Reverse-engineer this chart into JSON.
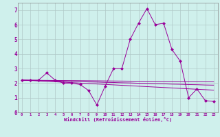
{
  "xlabel": "Windchill (Refroidissement éolien,°C)",
  "background_color": "#cff0ec",
  "grid_color": "#b0c8c8",
  "line_color": "#990099",
  "xlim": [
    -0.5,
    23.5
  ],
  "ylim": [
    0,
    7.5
  ],
  "xticks": [
    0,
    1,
    2,
    3,
    4,
    5,
    6,
    7,
    8,
    9,
    10,
    11,
    12,
    13,
    14,
    15,
    16,
    17,
    18,
    19,
    20,
    21,
    22,
    23
  ],
  "yticks": [
    0,
    1,
    2,
    3,
    4,
    5,
    6,
    7
  ],
  "series": {
    "main": [
      2.2,
      2.2,
      2.2,
      2.7,
      2.2,
      2.0,
      2.0,
      1.9,
      1.5,
      0.5,
      1.8,
      3.0,
      3.0,
      5.0,
      6.1,
      7.1,
      6.0,
      6.1,
      4.3,
      3.5,
      1.0,
      1.6,
      0.8,
      0.75
    ],
    "trend1": [
      2.2,
      2.18,
      2.15,
      2.12,
      2.09,
      2.06,
      2.03,
      2.0,
      1.97,
      1.94,
      1.91,
      1.88,
      1.85,
      1.82,
      1.79,
      1.76,
      1.73,
      1.7,
      1.67,
      1.64,
      1.61,
      1.58,
      1.55,
      1.52
    ],
    "trend2": [
      2.2,
      2.19,
      2.17,
      2.16,
      2.14,
      2.13,
      2.11,
      2.1,
      2.08,
      2.07,
      2.05,
      2.04,
      2.02,
      2.01,
      1.99,
      1.98,
      1.96,
      1.95,
      1.93,
      1.92,
      1.9,
      1.89,
      1.87,
      1.86
    ],
    "trend3": [
      2.2,
      2.195,
      2.19,
      2.185,
      2.18,
      2.175,
      2.17,
      2.165,
      2.16,
      2.155,
      2.15,
      2.145,
      2.14,
      2.135,
      2.13,
      2.125,
      2.12,
      2.115,
      2.11,
      2.105,
      2.1,
      2.095,
      2.09,
      2.085
    ]
  }
}
